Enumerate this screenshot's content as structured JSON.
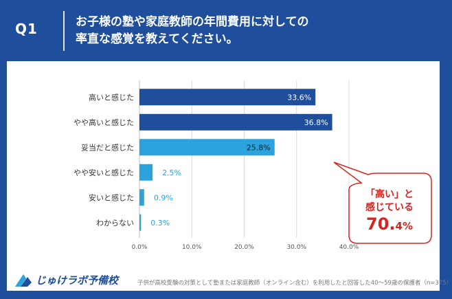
{
  "header": {
    "label": "Q1",
    "title_line1": "お子様の塾や家庭教師の年間費用に対しての",
    "title_line2": "率直な感覚を教えてください。"
  },
  "colors": {
    "background": "#1f4e9c",
    "bar_dark": "#1f4e9c",
    "bar_light": "#2aa3df",
    "callout_red": "#d9231e"
  },
  "chart_data": {
    "type": "bar",
    "orientation": "horizontal",
    "categories": [
      "高いと感じた",
      "やや高いと感じた",
      "妥当だと感じた",
      "やや安いと感じた",
      "安いと感じた",
      "わからない"
    ],
    "values": [
      33.6,
      36.8,
      25.8,
      2.5,
      0.9,
      0.3
    ],
    "value_labels": [
      "33.6%",
      "36.8%",
      "25.8%",
      "2.5%",
      "0.9%",
      "0.3%"
    ],
    "bar_colors": [
      "#1f4e9c",
      "#1f4e9c",
      "#2aa3df",
      "#2aa3df",
      "#2aa3df",
      "#2aa3df"
    ],
    "xlim": [
      0,
      40
    ],
    "xticks": [
      "0.0%",
      "10.0%",
      "20.0%",
      "30.0%",
      "40.0%"
    ],
    "grid": true,
    "legend": "none"
  },
  "callout": {
    "line1": "「高い」と",
    "line2": "感じている",
    "value_big": "70.",
    "value_small": "4%"
  },
  "logo": {
    "text": "じゅけラボ予備校"
  },
  "footnote": "子供が高校受験の対策として塾または家庭教師（オンライン含む）を利用したと回答した40〜59歳の保護者（n=375）"
}
